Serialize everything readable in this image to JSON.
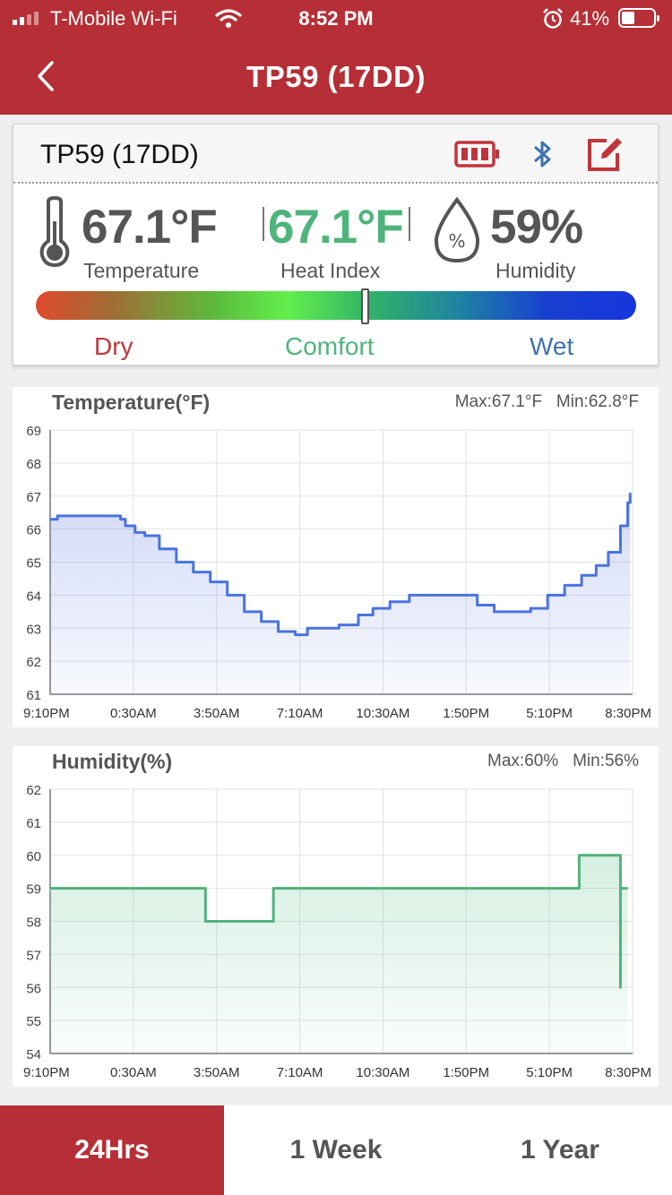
{
  "status_bar": {
    "carrier": "T-Mobile Wi-Fi",
    "time": "8:52 PM",
    "battery": "41%"
  },
  "nav": {
    "title": "TP59 (17DD)"
  },
  "device": {
    "name": "TP59 (17DD)",
    "icons": [
      "battery-icon",
      "bluetooth-icon",
      "edit-icon"
    ],
    "temperature": {
      "value": "67.1°F",
      "label": "Temperature"
    },
    "heat_index": {
      "value": "67.1°F",
      "label": "Heat Index"
    },
    "humidity": {
      "value": "59%",
      "label": "Humidity"
    },
    "comfort_level": 0.55,
    "zones": {
      "dry": "Dry",
      "comfort": "Comfort",
      "wet": "Wet"
    }
  },
  "colors": {
    "brand": "#b62f36",
    "comfort": "#4fb47c",
    "dry": "#c0353c",
    "wet": "#3f72b0",
    "temp_line": "#4a73e0",
    "humidity_line": "#54b27d"
  },
  "chart_data": [
    {
      "type": "line",
      "title": "Temperature(°F)",
      "max_label": "Max:67.1°F",
      "min_label": "Min:62.8°F",
      "x_ticks": [
        "9:10PM",
        "0:30AM",
        "3:50AM",
        "7:10AM",
        "10:30AM",
        "1:50PM",
        "5:10PM",
        "8:30PM"
      ],
      "y_ticks": [
        61,
        62,
        63,
        64,
        65,
        66,
        67,
        68,
        69
      ],
      "ylim": [
        61,
        69
      ],
      "x_range_hours": [
        0,
        23.8
      ],
      "series": [
        {
          "x": [
            0,
            0.3,
            1.2,
            2.3,
            2.9,
            3.1,
            3.5,
            3.9,
            4.5,
            5.2,
            5.9,
            6.6,
            7.3,
            8.0,
            8.7,
            9.4,
            10.1,
            10.6,
            11.2,
            11.9,
            12.7,
            13.3,
            14.0,
            14.8,
            15.5,
            16.2,
            16.9,
            17.6,
            18.3,
            19.0,
            19.8,
            20.5,
            21.2,
            21.9,
            22.5,
            23.0,
            23.5,
            23.8
          ],
          "y": [
            66.3,
            66.4,
            66.4,
            66.4,
            66.3,
            66.1,
            65.9,
            65.8,
            65.4,
            65.0,
            64.7,
            64.4,
            64.0,
            63.5,
            63.2,
            62.9,
            62.8,
            63.0,
            63.0,
            63.1,
            63.4,
            63.6,
            63.8,
            64.0,
            64.0,
            64.0,
            64.0,
            63.7,
            63.5,
            63.5,
            63.6,
            64.0,
            64.3,
            64.6,
            64.9,
            65.3,
            66.1,
            66.6
          ]
        }
      ],
      "series_tail": {
        "x": [
          23.8,
          23.9
        ],
        "y": [
          66.8,
          67.1
        ]
      },
      "grid": true
    },
    {
      "type": "line",
      "title": "Humidity(%)",
      "max_label": "Max:60%",
      "min_label": "Min:56%",
      "x_ticks": [
        "9:10PM",
        "0:30AM",
        "3:50AM",
        "7:10AM",
        "10:30AM",
        "1:50PM",
        "5:10PM",
        "8:30PM"
      ],
      "y_ticks": [
        54,
        55,
        56,
        57,
        58,
        59,
        60,
        61,
        62
      ],
      "ylim": [
        54,
        62
      ],
      "series": [
        {
          "x": [
            0,
            6.4,
            6.4,
            6.5,
            6.5,
            9.2,
            9.2,
            21.8,
            21.8,
            23.5,
            23.5,
            23.5,
            23.8
          ],
          "y": [
            59,
            59,
            58,
            58,
            58,
            58,
            59,
            59,
            60,
            60,
            56,
            59,
            59
          ]
        }
      ],
      "grid": true
    }
  ],
  "tabs": [
    {
      "label": "24Hrs",
      "active": true
    },
    {
      "label": "1 Week",
      "active": false
    },
    {
      "label": "1 Year",
      "active": false
    }
  ]
}
